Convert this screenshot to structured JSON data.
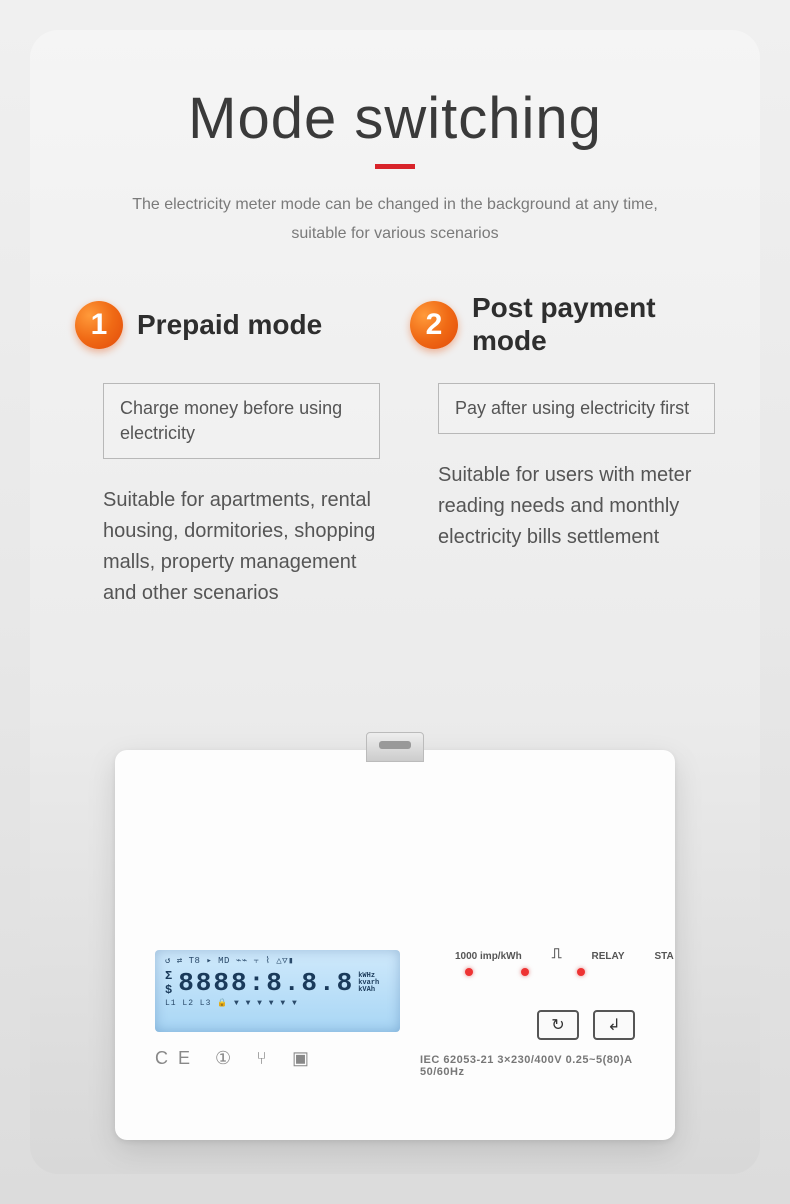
{
  "header": {
    "title": "Mode switching",
    "subtitle_line1": "The electricity meter mode can be changed in the background at any time,",
    "subtitle_line2": "suitable for various scenarios",
    "underline_color": "#d8232a"
  },
  "modes": [
    {
      "number": "1",
      "badge_color": "#f06a15",
      "title": "Prepaid mode",
      "box": "Charge money before using electricity",
      "description": "Suitable for apartments, rental housing, dormitories, shopping malls, property management and other scenarios"
    },
    {
      "number": "2",
      "badge_color": "#f06a15",
      "title": "Post payment mode",
      "box": "Pay after using electricity first",
      "description": "Suitable for users with meter reading needs and monthly electricity bills settlement"
    }
  ],
  "device": {
    "lcd": {
      "top_row": "↺ ⇄ T8 ▸ MD  ⌁⌁  ⫟  ⌇  △▽▮",
      "digits": "8888:8.8.8",
      "units": "kWHz\nkvarh\nkVAh",
      "bottom_row": "L1 L2 L3 🔒 ▼ ▼ ▼ ▼ ▼ ▼",
      "sigma": "Σ",
      "dollar": "$"
    },
    "ce_symbols": "CE ① ⑂ ▣",
    "led": {
      "imp": "1000 imp/kWh",
      "pulse_icon": "⎍",
      "relay": "RELAY",
      "sta": "STA"
    },
    "spec": "IEC 62053-21   3×230/400V   0.25~5(80)A   50/60Hz",
    "buttons": {
      "cycle": "↻",
      "enter": "↲"
    }
  },
  "colors": {
    "title_text": "#3a3a3a",
    "body_text": "#555555",
    "subtitle_text": "#7a7a7a",
    "led_red": "#ee3333",
    "lcd_bg_top": "#cfe9fb",
    "lcd_bg_bottom": "#a8d6f5"
  }
}
